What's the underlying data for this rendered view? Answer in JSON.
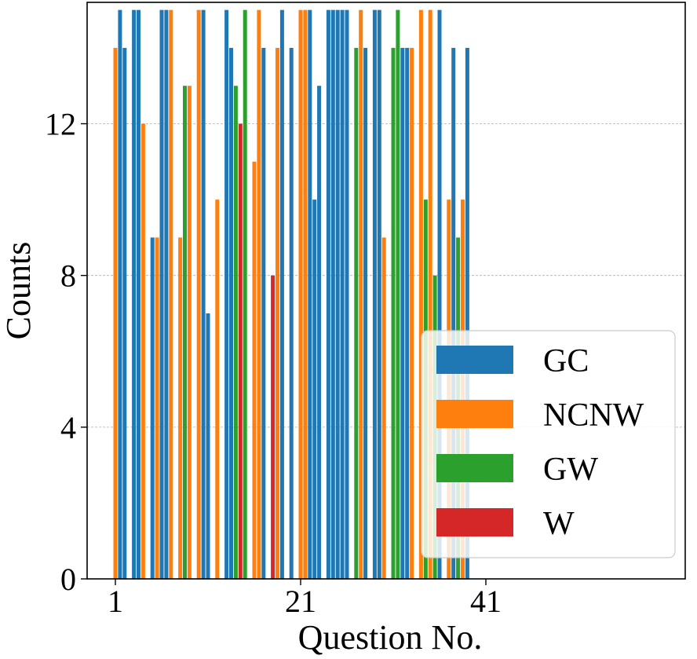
{
  "chart_data": {
    "type": "bar",
    "xlabel": "Question No.",
    "ylabel": "Counts",
    "xticks": [
      1,
      21,
      41
    ],
    "yticks": [
      0,
      4,
      8,
      12
    ],
    "ylim": [
      0,
      15.2
    ],
    "grid": "y-dashed",
    "legend_position": "bottom-right",
    "series": [
      {
        "name": "GC",
        "color": "#1f77b4"
      },
      {
        "name": "NCNW",
        "color": "#ff7f0e"
      },
      {
        "name": "GW",
        "color": "#2ca02c"
      },
      {
        "name": "W",
        "color": "#d62728"
      }
    ],
    "bars": [
      {
        "q": 1,
        "series": "NCNW",
        "value": 14
      },
      {
        "q": 1,
        "series": "GC",
        "value": 15
      },
      {
        "q": 2,
        "series": "GC",
        "value": 14
      },
      {
        "q": 3,
        "series": "GC",
        "value": 15
      },
      {
        "q": 3,
        "series": "GC",
        "value": 15
      },
      {
        "q": 4,
        "series": "NCNW",
        "value": 12
      },
      {
        "q": 5,
        "series": "GC",
        "value": 9
      },
      {
        "q": 5,
        "series": "NCNW",
        "value": 9
      },
      {
        "q": 6,
        "series": "GC",
        "value": 15
      },
      {
        "q": 6,
        "series": "GC",
        "value": 15
      },
      {
        "q": 7,
        "series": "NCNW",
        "value": 15
      },
      {
        "q": 8,
        "series": "NCNW",
        "value": 9
      },
      {
        "q": 8,
        "series": "GW",
        "value": 13
      },
      {
        "q": 9,
        "series": "NCNW",
        "value": 13
      },
      {
        "q": 10,
        "series": "NCNW",
        "value": 15
      },
      {
        "q": 10,
        "series": "GC",
        "value": 15
      },
      {
        "q": 11,
        "series": "GC",
        "value": 7
      },
      {
        "q": 12,
        "series": "NCNW",
        "value": 10
      },
      {
        "q": 13,
        "series": "GC",
        "value": 15
      },
      {
        "q": 13,
        "series": "GC",
        "value": 14
      },
      {
        "q": 14,
        "series": "GW",
        "value": 13
      },
      {
        "q": 14,
        "series": "W",
        "value": 12
      },
      {
        "q": 15,
        "series": "GW",
        "value": 15
      },
      {
        "q": 16,
        "series": "NCNW",
        "value": 11
      },
      {
        "q": 16,
        "series": "NCNW",
        "value": 15
      },
      {
        "q": 17,
        "series": "GC",
        "value": 14
      },
      {
        "q": 18,
        "series": "W",
        "value": 8
      },
      {
        "q": 18,
        "series": "NCNW",
        "value": 14
      },
      {
        "q": 19,
        "series": "GC",
        "value": 15
      },
      {
        "q": 20,
        "series": "GC",
        "value": 14
      },
      {
        "q": 21,
        "series": "NCNW",
        "value": 15
      },
      {
        "q": 21,
        "series": "NCNW",
        "value": 15
      },
      {
        "q": 22,
        "series": "GC",
        "value": 15
      },
      {
        "q": 22,
        "series": "GC",
        "value": 10
      },
      {
        "q": 23,
        "series": "GC",
        "value": 13
      },
      {
        "q": 24,
        "series": "GC",
        "value": 15
      },
      {
        "q": 24,
        "series": "GC",
        "value": 15
      },
      {
        "q": 25,
        "series": "GC",
        "value": 15
      },
      {
        "q": 25,
        "series": "GC",
        "value": 15
      },
      {
        "q": 26,
        "series": "GC",
        "value": 15
      },
      {
        "q": 27,
        "series": "GW",
        "value": 14
      },
      {
        "q": 27,
        "series": "NCNW",
        "value": 15
      },
      {
        "q": 28,
        "series": "GC",
        "value": 14
      },
      {
        "q": 29,
        "series": "GC",
        "value": 15
      },
      {
        "q": 29,
        "series": "GC",
        "value": 15
      },
      {
        "q": 30,
        "series": "NCNW",
        "value": 9
      },
      {
        "q": 31,
        "series": "GW",
        "value": 14
      },
      {
        "q": 31,
        "series": "GW",
        "value": 15
      },
      {
        "q": 32,
        "series": "GC",
        "value": 14
      },
      {
        "q": 32,
        "series": "GC",
        "value": 14
      },
      {
        "q": 33,
        "series": "NCNW",
        "value": 14
      },
      {
        "q": 34,
        "series": "NCNW",
        "value": 15
      },
      {
        "q": 34,
        "series": "GW",
        "value": 10
      },
      {
        "q": 35,
        "series": "NCNW",
        "value": 15
      },
      {
        "q": 35,
        "series": "GW",
        "value": 8
      },
      {
        "q": 36,
        "series": "GC",
        "value": 15
      },
      {
        "q": 37,
        "series": "NCNW",
        "value": 10
      },
      {
        "q": 37,
        "series": "GC",
        "value": 14
      },
      {
        "q": 38,
        "series": "GW",
        "value": 9
      },
      {
        "q": 38,
        "series": "NCNW",
        "value": 10
      },
      {
        "q": 39,
        "series": "GC",
        "value": 14
      }
    ]
  }
}
